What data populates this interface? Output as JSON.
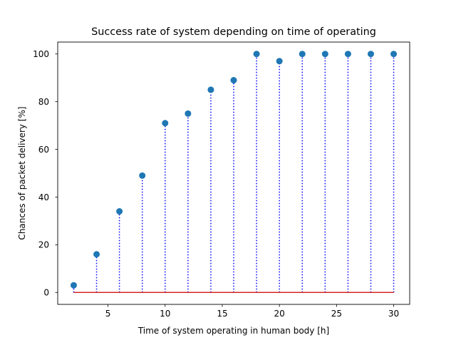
{
  "chart_data": {
    "type": "stem",
    "title": "Success rate of system depending on time of operating",
    "xlabel": "Time of system operating in human body [h]",
    "ylabel": "Chances of packet delivery [%]",
    "x": [
      2,
      4,
      6,
      8,
      10,
      12,
      14,
      16,
      18,
      20,
      22,
      24,
      26,
      28,
      30
    ],
    "y": [
      3,
      16,
      34,
      49,
      71,
      75,
      85,
      89,
      100,
      97,
      100,
      100,
      100,
      100,
      100
    ],
    "xlim": [
      0.6,
      31.4
    ],
    "ylim": [
      -5,
      105
    ],
    "xticks": [
      5,
      10,
      15,
      20,
      25,
      30
    ],
    "yticks": [
      0,
      20,
      40,
      60,
      80,
      100
    ],
    "baseline": 0,
    "grid": false,
    "colors": {
      "marker": "#1f77b4",
      "stem": "#0000ff",
      "baseline": "#d62728"
    }
  }
}
